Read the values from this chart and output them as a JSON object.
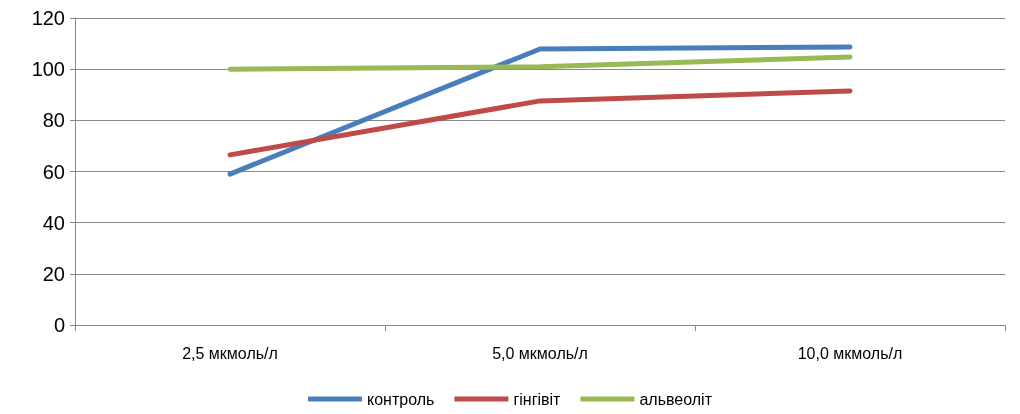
{
  "chart_data": {
    "type": "line",
    "categories": [
      "2,5 мкмоль/л",
      "5,0 мкмоль/л",
      "10,0 мкмоль/л"
    ],
    "series": [
      {
        "name": "контроль",
        "color": "#4a7ebb",
        "values": [
          59,
          107.9,
          108.7
        ]
      },
      {
        "name": "гінгівіт",
        "color": "#be4b48",
        "values": [
          66.5,
          87.6,
          91.5
        ]
      },
      {
        "name": "альвеоліт",
        "color": "#98b954",
        "values": [
          100,
          100.9,
          104.8
        ]
      }
    ],
    "ylim": [
      0,
      120
    ],
    "yticks": [
      0,
      20,
      40,
      60,
      80,
      100,
      120
    ],
    "grid": "y",
    "legend": "bottom",
    "marker": "none",
    "line_style": "solid"
  }
}
